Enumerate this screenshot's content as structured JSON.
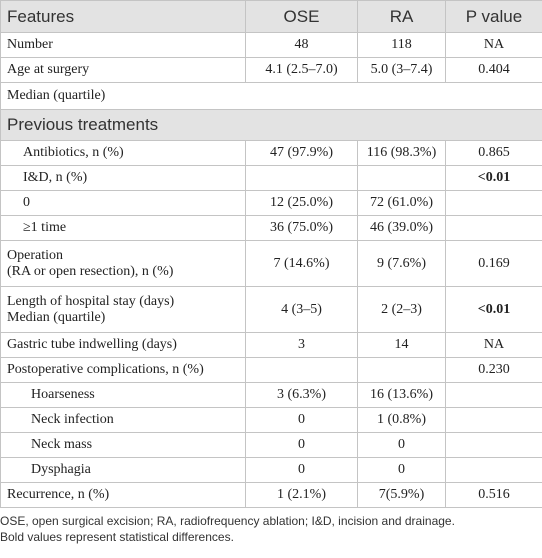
{
  "table": {
    "header": [
      "Features",
      "OSE",
      "RA",
      "P value"
    ],
    "rows": [
      [
        "Number",
        "48",
        "118",
        "NA"
      ],
      [
        "Age at surgery",
        "4.1 (2.5–7.0)",
        "5.0 (3–7.4)",
        "0.404"
      ],
      [
        "Median (quartile)"
      ],
      [
        "Previous treatments"
      ],
      [
        "Antibiotics, n (%)",
        "47 (97.9%)",
        "116 (98.3%)",
        "0.865"
      ],
      [
        "I&D, n (%)",
        null,
        null,
        "<0.01"
      ],
      [
        "0",
        "12 (25.0%)",
        "72 (61.0%)",
        null
      ],
      [
        "≥1 time",
        "36 (75.0%)",
        "46 (39.0%)",
        null
      ],
      [
        [
          "Operation",
          "(RA or open resection), n (%)"
        ],
        "7 (14.6%)",
        "9 (7.6%)",
        "0.169"
      ],
      [
        [
          "Length of hospital stay (days)",
          "Median (quartile)"
        ],
        "4 (3–5)",
        "2 (2–3)",
        "<0.01"
      ],
      [
        "Gastric tube indwelling (days)",
        "3",
        "14",
        "NA"
      ],
      [
        "Postoperative complications, n (%)",
        null,
        null,
        "0.230"
      ],
      [
        "Hoarseness",
        "3 (6.3%)",
        "16 (13.6%)",
        null
      ],
      [
        "Neck infection",
        "0",
        "1 (0.8%)",
        null
      ],
      [
        "Neck mass",
        "0",
        "0",
        null
      ],
      [
        "Dysphagia",
        "0",
        "0",
        null
      ],
      [
        "Recurrence, n (%)",
        "1 (2.1%)",
        "7(5.9%)",
        "0.516"
      ]
    ]
  },
  "footnote": [
    "OSE, open surgical excision; RA, radiofrequency ablation; I&D, incision and drainage.",
    "Bold values represent statistical differences."
  ]
}
